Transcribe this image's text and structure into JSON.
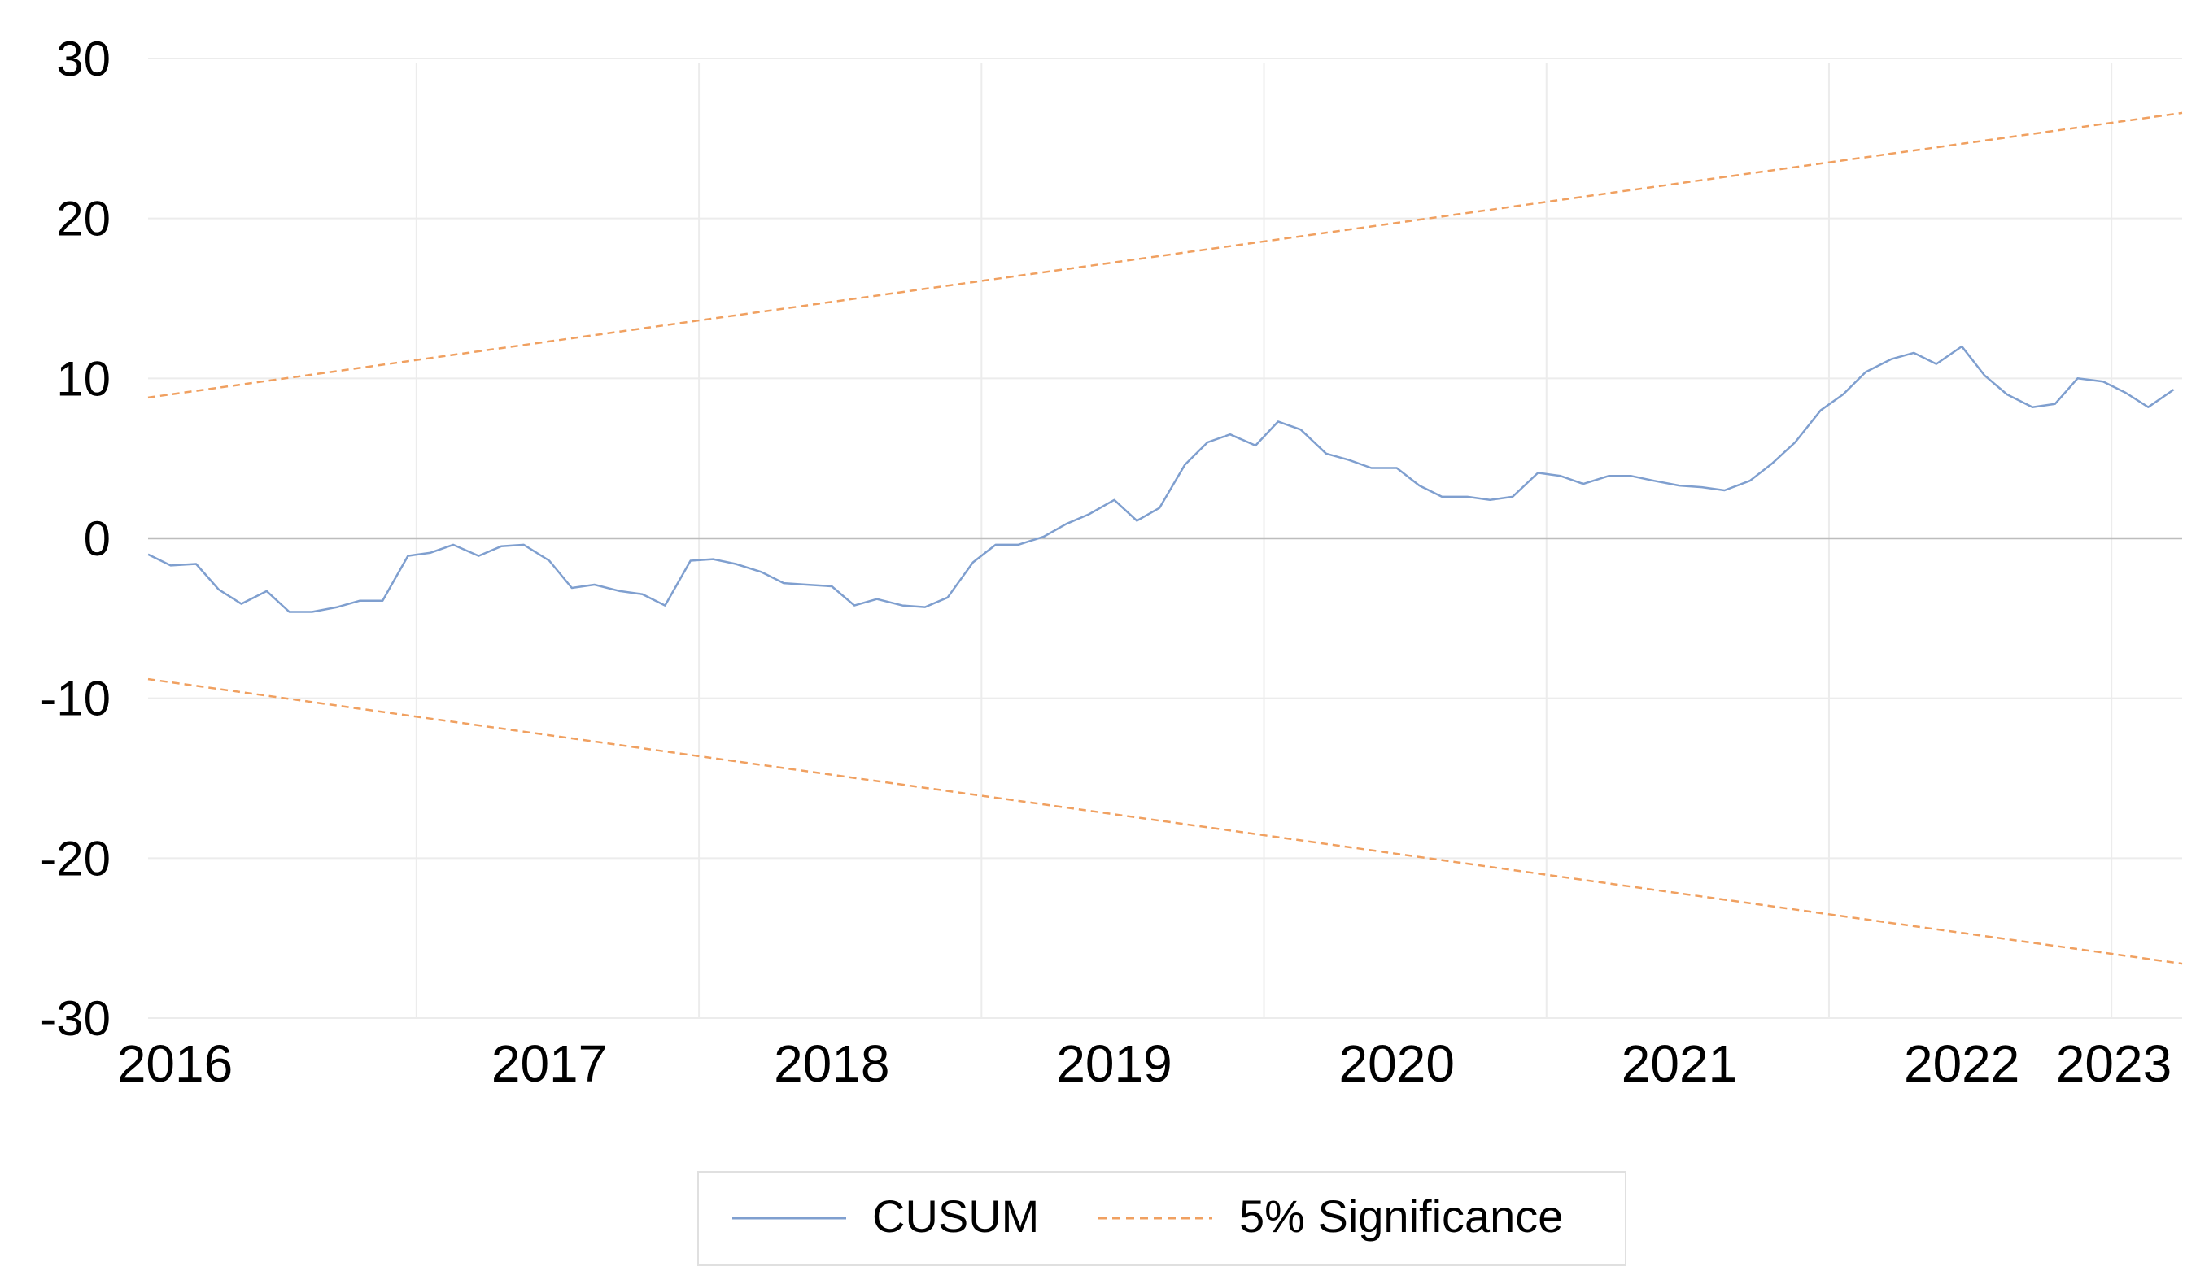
{
  "chart_data": {
    "type": "line",
    "x_unit": "year",
    "xlim": [
      2016.0,
      2023.2
    ],
    "ylim": [
      -30,
      30
    ],
    "yticks": [
      30,
      20,
      10,
      0,
      -10,
      -20,
      -30
    ],
    "xticks": [
      "2016",
      "2017",
      "2018",
      "2019",
      "2020",
      "2021",
      "2022",
      "2023"
    ],
    "grid": "vertical-and-horizontal",
    "legend_position": "bottom",
    "legend": [
      "CUSUM",
      "5% Significance"
    ],
    "series": [
      {
        "name": "CUSUM",
        "color": "#7f9fcf",
        "style": "solid",
        "x": [
          2016.0,
          2016.08,
          2016.17,
          2016.25,
          2016.33,
          2016.42,
          2016.5,
          2016.58,
          2016.67,
          2016.75,
          2016.83,
          2016.92,
          2017.0,
          2017.08,
          2017.17,
          2017.25,
          2017.33,
          2017.42,
          2017.5,
          2017.58,
          2017.67,
          2017.75,
          2017.83,
          2017.92,
          2018.0,
          2018.08,
          2018.17,
          2018.25,
          2018.33,
          2018.42,
          2018.5,
          2018.58,
          2018.67,
          2018.75,
          2018.83,
          2018.92,
          2019.0,
          2019.08,
          2019.17,
          2019.25,
          2019.33,
          2019.42,
          2019.5,
          2019.58,
          2019.67,
          2019.75,
          2019.83,
          2019.92,
          2020.0,
          2020.08,
          2020.17,
          2020.25,
          2020.33,
          2020.42,
          2020.5,
          2020.58,
          2020.67,
          2020.75,
          2020.83,
          2020.92,
          2021.0,
          2021.08,
          2021.17,
          2021.25,
          2021.33,
          2021.42,
          2021.5,
          2021.58,
          2021.67,
          2021.75,
          2021.83,
          2021.92,
          2022.0,
          2022.08,
          2022.17,
          2022.25,
          2022.33,
          2022.42,
          2022.5,
          2022.58,
          2022.67,
          2022.75,
          2022.83,
          2022.92,
          2023.0,
          2023.08,
          2023.17
        ],
        "values": [
          -1.0,
          -1.7,
          -1.6,
          -3.2,
          -4.1,
          -3.3,
          -4.6,
          -4.6,
          -4.3,
          -3.9,
          -3.9,
          -1.1,
          -0.9,
          -0.4,
          -1.1,
          -0.5,
          -0.4,
          -1.4,
          -3.1,
          -2.9,
          -3.3,
          -3.5,
          -4.2,
          -1.4,
          -1.3,
          -1.6,
          -2.1,
          -2.8,
          -2.9,
          -3.0,
          -4.2,
          -3.8,
          -4.2,
          -4.3,
          -3.7,
          -1.5,
          -0.4,
          -0.4,
          0.1,
          0.9,
          1.5,
          2.4,
          1.1,
          1.9,
          4.6,
          6.0,
          6.5,
          5.8,
          7.3,
          6.8,
          5.3,
          4.9,
          4.4,
          4.4,
          3.3,
          2.6,
          2.6,
          2.4,
          2.6,
          4.1,
          3.9,
          3.4,
          3.9,
          3.9,
          3.6,
          3.3,
          3.2,
          3.0,
          3.6,
          4.7,
          6.0,
          8.0,
          9.0,
          10.4,
          11.2,
          11.6,
          10.9,
          12.0,
          10.2,
          9.0,
          8.2,
          8.4,
          10.0,
          9.8,
          9.1,
          8.2,
          9.3
        ]
      },
      {
        "name": "5% Significance",
        "color": "#f0a060",
        "style": "dashed",
        "x": [
          2016.0,
          2023.2
        ],
        "values": [
          8.8,
          26.6
        ]
      },
      {
        "name": "5% Significance",
        "color": "#f0a060",
        "style": "dashed",
        "x": [
          2016.0,
          2023.2
        ],
        "values": [
          -8.8,
          -26.6
        ]
      }
    ]
  }
}
